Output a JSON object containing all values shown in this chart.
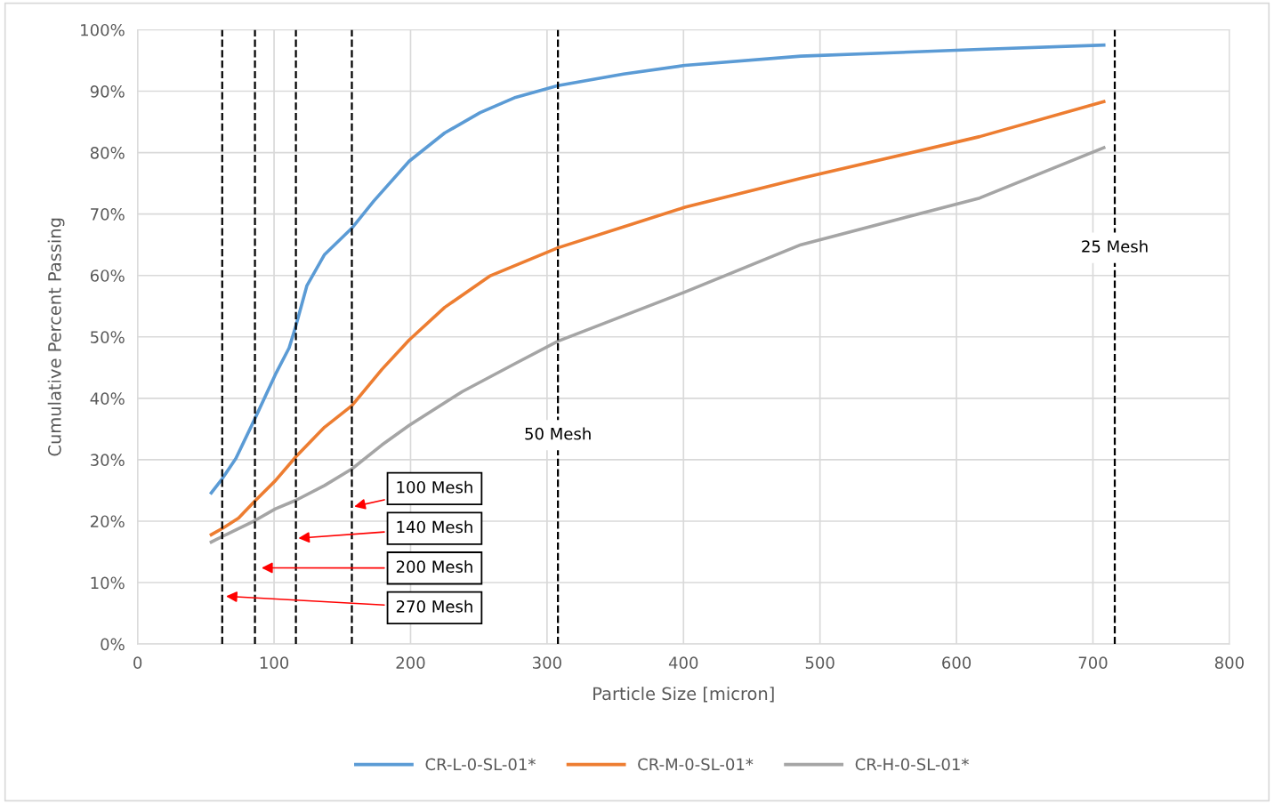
{
  "chart_data": {
    "type": "line",
    "xlabel": "Particle Size [micron]",
    "ylabel": "Cumulative Percent Passing",
    "xlim": [
      0,
      800
    ],
    "xticks": [
      0,
      100,
      200,
      300,
      400,
      500,
      600,
      700,
      800
    ],
    "ylim": [
      0,
      100
    ],
    "yticks": [
      {
        "value": 0,
        "label": "0%"
      },
      {
        "value": 10,
        "label": "10%"
      },
      {
        "value": 20,
        "label": "20%"
      },
      {
        "value": 30,
        "label": "30%"
      },
      {
        "value": 40,
        "label": "40%"
      },
      {
        "value": 50,
        "label": "50%"
      },
      {
        "value": 60,
        "label": "60%"
      },
      {
        "value": 70,
        "label": "70%"
      },
      {
        "value": 80,
        "label": "80%"
      },
      {
        "value": 90,
        "label": "90%"
      },
      {
        "value": 100,
        "label": "100%"
      }
    ],
    "grid": true,
    "legend": "bottom",
    "marker": "none",
    "line_style": "solid",
    "series": [
      {
        "name": "CR-L-0-SL-01*",
        "color": "#5b9bd5",
        "x": [
          54,
          62,
          72,
          86,
          101,
          111,
          116,
          124,
          137,
          157,
          173,
          199,
          225,
          251,
          277,
          308,
          356,
          401,
          486,
          617,
          708
        ],
        "values": [
          24.6,
          26.9,
          30.2,
          36.7,
          43.9,
          48.2,
          51.8,
          58.3,
          63.4,
          67.7,
          72.1,
          78.6,
          83.2,
          86.5,
          89.0,
          90.9,
          92.8,
          94.2,
          95.7,
          96.8,
          97.5
        ]
      },
      {
        "name": "CR-M-0-SL-01*",
        "color": "#ed7d31",
        "x": [
          54,
          62,
          74,
          86,
          101,
          116,
          137,
          157,
          179,
          199,
          225,
          258,
          308,
          401,
          486,
          617,
          708
        ],
        "values": [
          17.8,
          18.8,
          20.5,
          23.3,
          26.6,
          30.5,
          35.3,
          38.8,
          44.7,
          49.5,
          54.8,
          59.9,
          64.5,
          71.1,
          75.8,
          82.6,
          88.3
        ]
      },
      {
        "name": "CR-H-0-SL-01*",
        "color": "#a5a5a5",
        "x": [
          54,
          62,
          86,
          101,
          116,
          137,
          157,
          179,
          199,
          238,
          277,
          308,
          401,
          486,
          617,
          708
        ],
        "values": [
          16.6,
          17.5,
          20.1,
          22.0,
          23.4,
          25.8,
          28.5,
          32.4,
          35.6,
          41.1,
          45.7,
          49.3,
          57.3,
          65.0,
          72.6,
          80.8
        ]
      }
    ],
    "ref_lines": [
      {
        "axis": "x",
        "value": 62,
        "color": "#000000",
        "line_style": "dashed"
      },
      {
        "axis": "x",
        "value": 86,
        "color": "#000000",
        "line_style": "dashed"
      },
      {
        "axis": "x",
        "value": 116,
        "color": "#000000",
        "line_style": "dashed"
      },
      {
        "axis": "x",
        "value": 157,
        "color": "#000000",
        "line_style": "dashed"
      },
      {
        "axis": "x",
        "value": 308,
        "label": "50 Mesh",
        "color": "#000000",
        "line_style": "dashed"
      },
      {
        "axis": "x",
        "value": 716,
        "label": "25 Mesh",
        "color": "#000000",
        "line_style": "dashed"
      }
    ],
    "annotations": [
      {
        "text": "100 Mesh",
        "x": 157,
        "y": 22.3
      },
      {
        "text": "140 Mesh",
        "x": 116,
        "y": 17.2
      },
      {
        "text": "200 Mesh",
        "x": 89,
        "y": 12.4
      },
      {
        "text": "270 Mesh",
        "x": 63,
        "y": 7.8
      }
    ]
  }
}
